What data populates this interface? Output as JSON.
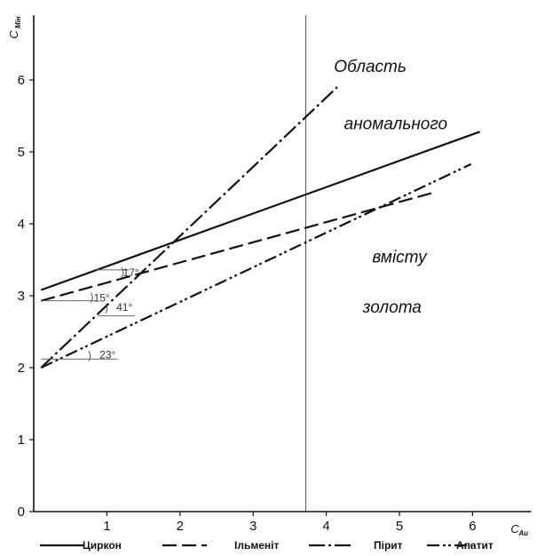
{
  "chart_data": {
    "type": "line",
    "xlabel": "C",
    "xlabel_sub": "Au",
    "ylabel": "C",
    "ylabel_sub": "Мін",
    "xlim": [
      0,
      6.8
    ],
    "ylim": [
      0,
      6.9
    ],
    "x_ticks": [
      "1",
      "2",
      "3",
      "4",
      "5",
      "6"
    ],
    "y_ticks": [
      "0",
      "1",
      "2",
      "3",
      "4",
      "5",
      "6"
    ],
    "vertical_line_x": 3.72,
    "annotations": [
      "Область",
      "аномального",
      "вмісту",
      "золота"
    ],
    "angle_labels": [
      "17°",
      "15°",
      "41°",
      "23°"
    ],
    "series": [
      {
        "name": "Циркон",
        "dash": "solid",
        "points": [
          [
            0.1,
            3.08
          ],
          [
            6.1,
            5.28
          ]
        ]
      },
      {
        "name": "Ільменіт",
        "dash": "dashed",
        "points": [
          [
            0.1,
            2.93
          ],
          [
            5.45,
            4.43
          ]
        ]
      },
      {
        "name": "Пірит",
        "dash": "dashdot",
        "points": [
          [
            0.1,
            2.0
          ],
          [
            4.15,
            5.9
          ]
        ]
      },
      {
        "name": "Апатит",
        "dash": "dashdotdot",
        "points": [
          [
            0.1,
            2.0
          ],
          [
            5.98,
            4.83
          ]
        ]
      }
    ],
    "legend_placement": "bottom"
  }
}
